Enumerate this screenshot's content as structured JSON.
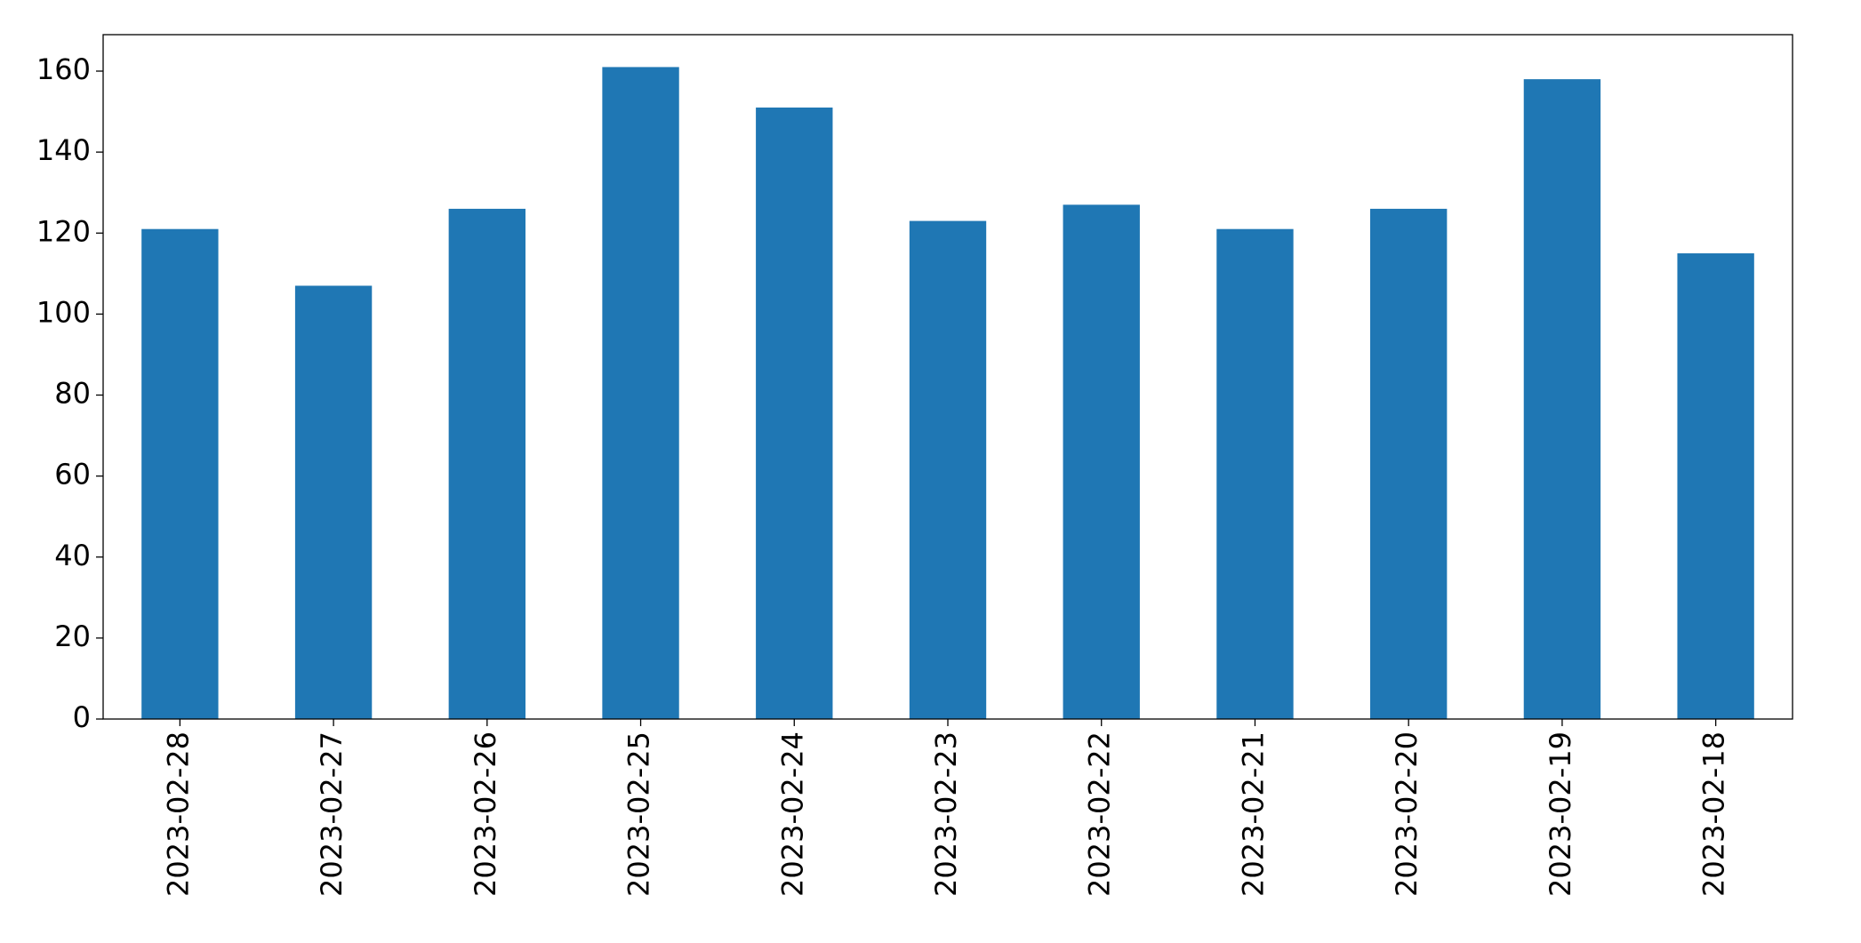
{
  "chart_data": {
    "type": "bar",
    "categories": [
      "2023-02-28",
      "2023-02-27",
      "2023-02-26",
      "2023-02-25",
      "2023-02-24",
      "2023-02-23",
      "2023-02-22",
      "2023-02-21",
      "2023-02-20",
      "2023-02-19",
      "2023-02-18"
    ],
    "values": [
      121,
      107,
      126,
      161,
      151,
      123,
      127,
      121,
      126,
      158,
      115
    ],
    "color": "#1f77b4",
    "ylim": [
      0,
      169
    ],
    "yticks": [
      0,
      20,
      40,
      60,
      80,
      100,
      120,
      140,
      160
    ],
    "grid": false
  }
}
